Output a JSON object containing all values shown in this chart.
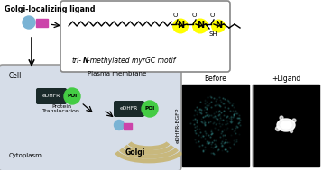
{
  "bg_color": "#ffffff",
  "cell_bg": "#d6dde8",
  "golgi_color": "#c8b87d",
  "ligand_circle_color": "#7ab3d4",
  "ligand_rect_color": "#cc44aa",
  "edhfr_color": "#1a2a2a",
  "poi_color": "#44cc44",
  "yellow_highlight": "#ffff00",
  "title": "Golgi-localizing ligand",
  "tri_n_label_pre": "tri-",
  "tri_n_label_N": "N",
  "tri_n_label_post": "-methylated myrGC motif",
  "plasma_membrane_label": "Plasma membrane",
  "cell_label": "Cell",
  "cytoplasm_label": "Cytoplasm",
  "golgi_label": "Golgi",
  "protein_translocation_label": "Protein\nTranslocation",
  "before_label": "Before",
  "ligand_label": "+Ligand",
  "yaxis_label": "eDHFR-EGFP",
  "figsize": [
    3.58,
    1.89
  ],
  "dpi": 100
}
